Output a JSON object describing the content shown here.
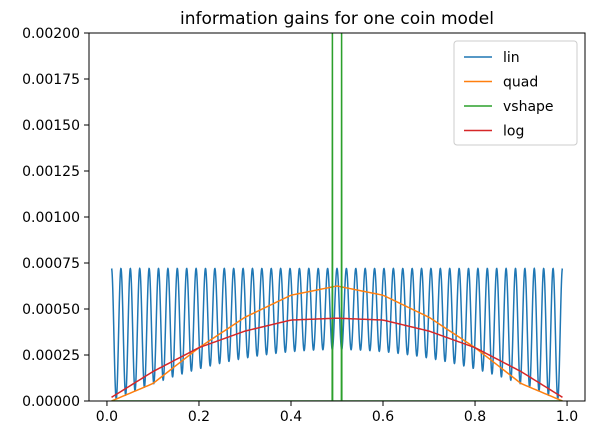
{
  "chart_data": {
    "type": "line",
    "title": "information gains for one coin model",
    "xlabel": "",
    "ylabel": "",
    "xlim": [
      -0.039,
      1.039
    ],
    "ylim": [
      0,
      0.002
    ],
    "xticks": [
      0.0,
      0.2,
      0.4,
      0.6,
      0.8,
      1.0
    ],
    "xtick_labels": [
      "0.0",
      "0.2",
      "0.4",
      "0.6",
      "0.8",
      "1.0"
    ],
    "yticks": [
      0,
      0.00025,
      0.0005,
      0.00075,
      0.001,
      0.00125,
      0.0015,
      0.00175,
      0.002
    ],
    "ytick_labels": [
      "0.00000",
      "0.00025",
      "0.00050",
      "0.00075",
      "0.00100",
      "0.00125",
      "0.00150",
      "0.00175",
      "0.00200"
    ],
    "grid": false,
    "legend_position": "top-right",
    "colors": {
      "lin": "#1f77b4",
      "quad": "#ff7f0e",
      "vshape": "#2ca02c",
      "log": "#d62728"
    },
    "x_range": [
      0.01,
      0.99
    ],
    "series": [
      {
        "name": "lin",
        "description_values": {
          "peak": 0.00072,
          "trough_at_edges": 0.0,
          "trough_at_center": 0.00028,
          "oscillations": 48
        }
      },
      {
        "name": "quad",
        "values_at": {
          "x": [
            0.01,
            0.1,
            0.2,
            0.3,
            0.4,
            0.5,
            0.6,
            0.7,
            0.8,
            0.9,
            0.99
          ],
          "y": [
            0.0,
            9.5e-05,
            0.00029,
            0.000455,
            0.000575,
            0.000625,
            0.000575,
            0.000455,
            0.00029,
            9.5e-05,
            0.0
          ]
        }
      },
      {
        "name": "vshape",
        "description_values": {
          "spike_x": [
            0.49,
            0.51
          ],
          "baseline": 0.0
        }
      },
      {
        "name": "log",
        "values_at": {
          "x": [
            0.01,
            0.1,
            0.2,
            0.3,
            0.4,
            0.5,
            0.6,
            0.7,
            0.8,
            0.9,
            0.99
          ],
          "y": [
            2e-05,
            0.00016,
            0.00029,
            0.00038,
            0.00044,
            0.00045,
            0.00044,
            0.00038,
            0.00029,
            0.00016,
            2e-05
          ]
        }
      }
    ]
  }
}
